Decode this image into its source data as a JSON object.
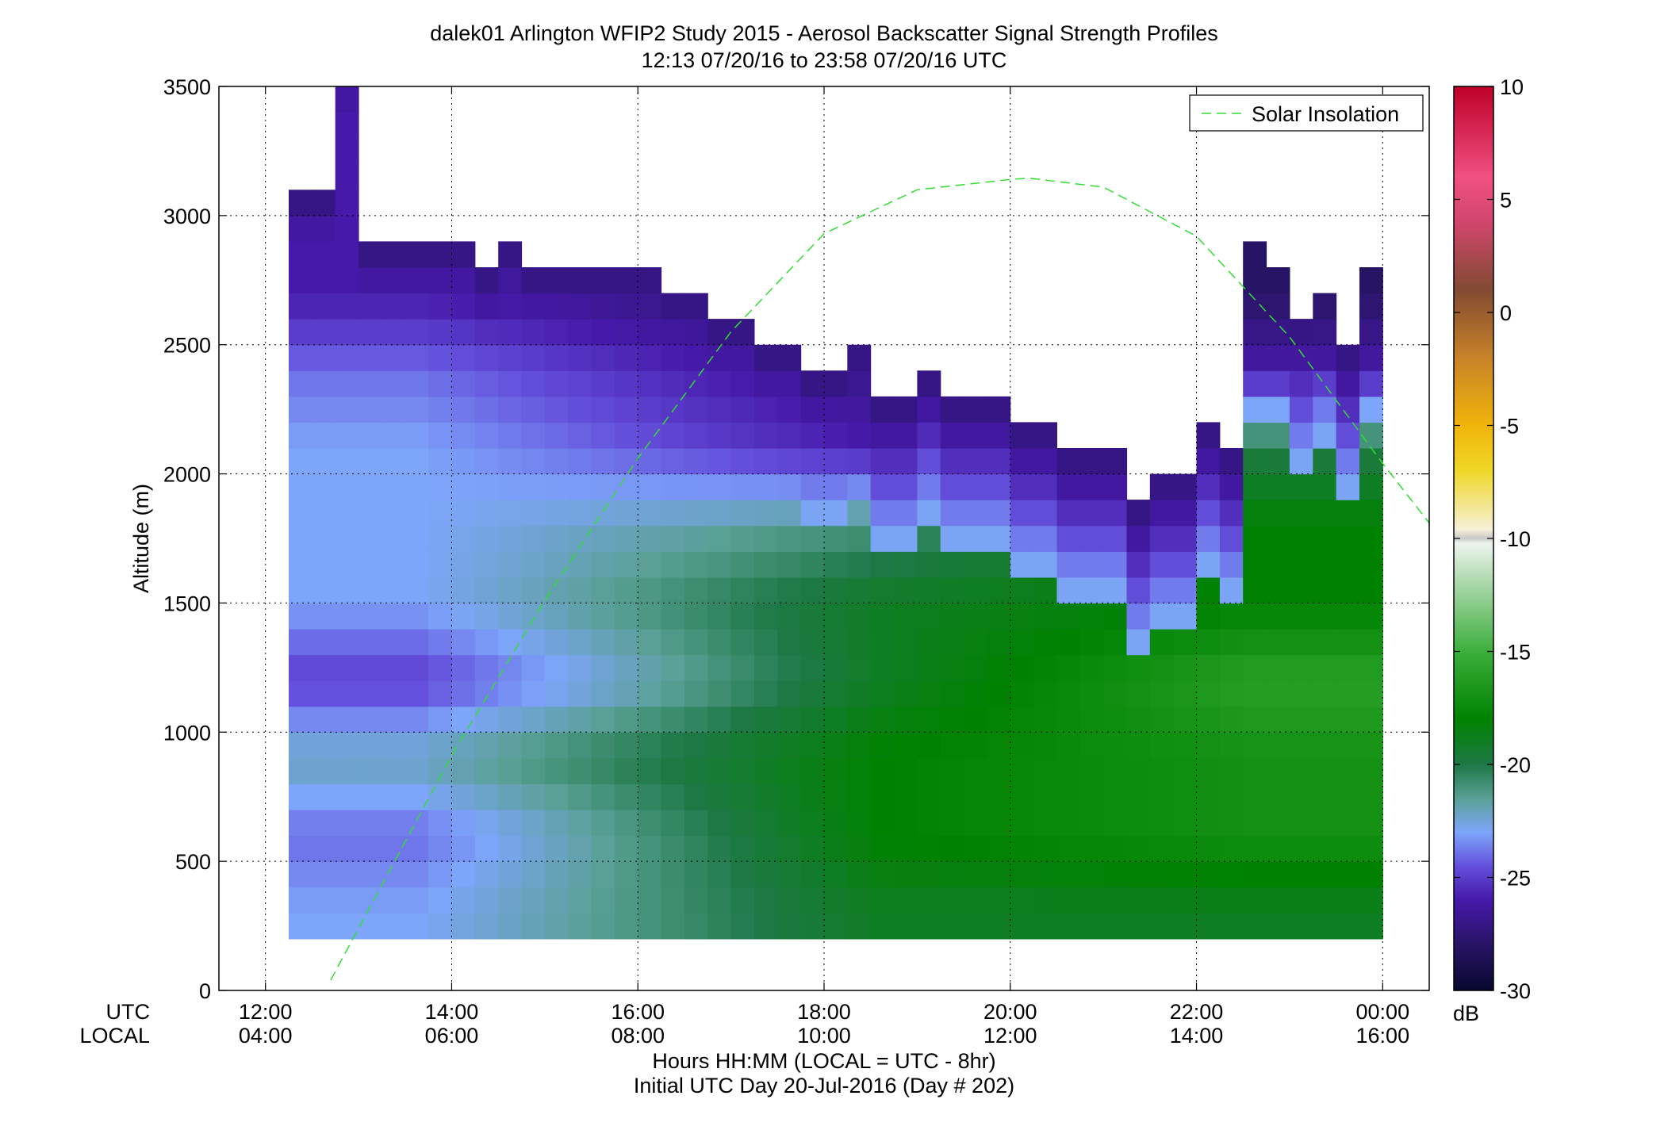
{
  "chart_data": {
    "type": "heatmap",
    "title": "dalek01 Arlington WFIP2 Study 2015 - Aerosol Backscatter Signal Strength Profiles",
    "subtitle": "12:13 07/20/16 to 23:58 07/20/16  UTC",
    "ylabel": "Altitude (m)",
    "xlabel": "Hours HH:MM  (LOCAL = UTC - 8hr)",
    "xlabel2": "Initial UTC Day 20-Jul-2016 (Day # 202)",
    "x_row_labels": [
      "UTC",
      "LOCAL"
    ],
    "xlim_hours_utc": [
      11.5,
      24.5
    ],
    "ylim": [
      0,
      3500
    ],
    "y_ticks": [
      0,
      500,
      1000,
      1500,
      2000,
      2500,
      3000,
      3500
    ],
    "x_ticks_utc": [
      "12:00",
      "14:00",
      "16:00",
      "18:00",
      "20:00",
      "22:00",
      "00:00"
    ],
    "x_ticks_local": [
      "04:00",
      "06:00",
      "08:00",
      "10:00",
      "12:00",
      "14:00",
      "16:00"
    ],
    "x_tick_hours_utc": [
      12,
      14,
      16,
      18,
      20,
      22,
      24
    ],
    "grid": true,
    "colorbar": {
      "label": "dB",
      "range": [
        -30,
        10
      ],
      "ticks": [
        10,
        5,
        0,
        -5,
        -10,
        -15,
        -20,
        -25,
        -30
      ]
    },
    "legend": {
      "entries": [
        "Solar Insolation"
      ],
      "position": "top-right",
      "style": "green dashed"
    },
    "bins": {
      "x_start_hour_utc": 12.25,
      "x_step_hours": 0.25,
      "y_start_m": 200,
      "y_step_m": 100,
      "columns": 47,
      "rows": 31
    },
    "column_tops_m": [
      3100,
      3100,
      3600,
      2900,
      2900,
      2900,
      2900,
      2900,
      2800,
      2900,
      2800,
      2800,
      2800,
      2800,
      2800,
      2800,
      2700,
      2700,
      2600,
      2600,
      2500,
      2500,
      2400,
      2400,
      2500,
      2300,
      2300,
      2400,
      2300,
      2300,
      2300,
      2200,
      2200,
      2100,
      2100,
      2100,
      1900,
      2000,
      2000,
      2200,
      2100,
      2900,
      2800,
      2600,
      2700,
      2500,
      2800
    ],
    "approx_signal_db_profile": {
      "altitudes_m": [
        300,
        600,
        900,
        1200,
        1500,
        1800,
        2100,
        2400,
        2700
      ],
      "morning_12_15_utc": [
        -23,
        -24,
        -22,
        -25,
        -23,
        -23,
        -23,
        -24,
        -26
      ],
      "midday_17_20_utc": [
        -19,
        -18,
        -18,
        -19,
        -19,
        -21,
        -26,
        -27,
        -28
      ],
      "afternoon_21_24_utc": [
        -19,
        -17,
        -17,
        -16,
        -18,
        -18,
        -20,
        -26,
        -28
      ]
    },
    "solar_insolation": {
      "x_hours_utc": [
        12.7,
        14.0,
        15.0,
        16.0,
        17.0,
        18.0,
        19.0,
        20.0,
        20.2,
        21.0,
        22.0,
        23.0,
        24.0,
        24.5
      ],
      "y_altitude_m": [
        40,
        910,
        1510,
        2060,
        2550,
        2930,
        3100,
        3140,
        3145,
        3110,
        2920,
        2530,
        2040,
        1810
      ]
    }
  }
}
